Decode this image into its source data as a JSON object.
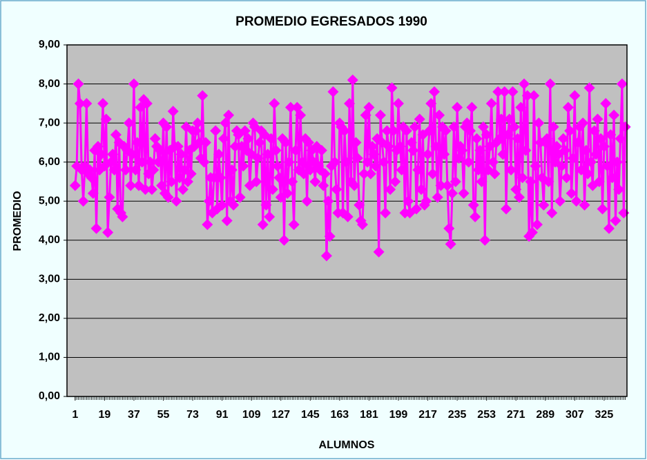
{
  "chart_data": {
    "type": "line",
    "title": "PROMEDIO EGRESADOS 1990",
    "x_label": "ALUMNOS",
    "y_label": "PROMEDIO",
    "x": [
      1,
      2,
      3,
      4,
      5,
      6,
      7,
      8,
      9,
      10,
      11,
      12,
      13,
      14,
      15,
      16,
      17,
      18,
      19,
      20,
      21,
      22,
      23,
      24,
      25,
      26,
      27,
      28,
      29,
      30,
      31,
      32,
      33,
      34,
      35,
      36,
      37,
      38,
      39,
      40,
      41,
      42,
      43,
      44,
      45,
      46,
      47,
      48,
      49,
      50,
      51,
      52,
      53,
      54,
      55,
      56,
      57,
      58,
      59,
      60,
      61,
      62,
      63,
      64,
      65,
      66,
      67,
      68,
      69,
      70,
      71,
      72,
      73,
      74,
      75,
      76,
      77,
      78,
      79,
      80,
      81,
      82,
      83,
      84,
      85,
      86,
      87,
      88,
      89,
      90,
      91,
      92,
      93,
      94,
      95,
      96,
      97,
      98,
      99,
      100,
      101,
      102,
      103,
      104,
      105,
      106,
      107,
      108,
      109,
      110,
      111,
      112,
      113,
      114,
      115,
      116,
      117,
      118,
      119,
      120,
      121,
      122,
      123,
      124,
      125,
      126,
      127,
      128,
      129,
      130,
      131,
      132,
      133,
      134,
      135,
      136,
      137,
      138,
      139,
      140,
      141,
      142,
      143,
      144,
      145,
      146,
      147,
      148,
      149,
      150,
      151,
      152,
      153,
      154,
      155,
      156,
      157,
      158,
      159,
      160,
      161,
      162,
      163,
      164,
      165,
      166,
      167,
      168,
      169,
      170,
      171,
      172,
      173,
      174,
      175,
      176,
      177,
      178,
      179,
      180,
      181,
      182,
      183,
      184,
      185,
      186,
      187,
      188,
      189,
      190,
      191,
      192,
      193,
      194,
      195,
      196,
      197,
      198,
      199,
      200,
      201,
      202,
      203,
      204,
      205,
      206,
      207,
      208,
      209,
      210,
      211,
      212,
      213,
      214,
      215,
      216,
      217,
      218,
      219,
      220,
      221,
      222,
      223,
      224,
      225,
      226,
      227,
      228,
      229,
      230,
      231,
      232,
      233,
      234,
      235,
      236,
      237,
      238,
      239,
      240,
      241,
      242,
      243,
      244,
      245,
      246,
      247,
      248,
      249,
      250,
      251,
      252,
      253,
      254,
      255,
      256,
      257,
      258,
      259,
      260,
      261,
      262,
      263,
      264,
      265,
      266,
      267,
      268,
      269,
      270,
      271,
      272,
      273,
      274,
      275,
      276,
      277,
      278,
      279,
      280,
      281,
      282,
      283,
      284,
      285,
      286,
      287,
      288,
      289,
      290,
      291,
      292,
      293,
      294,
      295,
      296,
      297,
      298,
      299,
      300,
      301,
      302,
      303,
      304,
      305,
      306,
      307,
      308,
      309,
      310,
      311,
      312,
      313,
      314,
      315,
      316,
      317,
      318,
      319,
      320,
      321,
      322,
      323,
      324,
      325,
      326,
      327,
      328,
      329,
      330,
      331,
      332,
      333,
      334,
      335,
      336,
      337,
      338
    ],
    "series": [
      {
        "name": "PROMEDIO",
        "color": "#ff00ff",
        "values": [
          5.4,
          5.9,
          8.0,
          7.5,
          5.8,
          5.0,
          5.9,
          7.5,
          5.7,
          5.8,
          5.6,
          5.2,
          6.3,
          4.3,
          6.4,
          5.8,
          6.2,
          7.5,
          5.9,
          7.1,
          4.2,
          5.1,
          6.0,
          6.2,
          5.8,
          6.7,
          4.8,
          6.5,
          4.7,
          4.6,
          6.4,
          5.8,
          6.3,
          7.0,
          5.4,
          6.2,
          8.0,
          5.8,
          6.5,
          5.4,
          7.4,
          6.0,
          7.6,
          5.3,
          7.5,
          5.7,
          6.0,
          5.3,
          5.8,
          6.6,
          6.4,
          6.0,
          6.3,
          5.4,
          7.0,
          5.2,
          6.9,
          5.1,
          6.3,
          5.5,
          7.3,
          6.4,
          5.0,
          6.4,
          5.6,
          6.2,
          5.3,
          5.8,
          6.9,
          5.5,
          6.3,
          5.7,
          6.8,
          6.4,
          6.8,
          7.0,
          6.5,
          6.1,
          7.7,
          6.0,
          6.5,
          4.4,
          5.0,
          5.6,
          4.7,
          5.6,
          6.8,
          4.8,
          6.2,
          5.6,
          4.9,
          6.6,
          7.0,
          4.5,
          7.2,
          5.0,
          5.8,
          4.9,
          6.4,
          6.8,
          6.7,
          5.1,
          6.4,
          5.9,
          6.8,
          6.3,
          6.6,
          5.4,
          6.2,
          7.0,
          6.9,
          5.5,
          6.1,
          6.5,
          6.8,
          4.4,
          6.7,
          4.9,
          6.2,
          4.6,
          6.6,
          5.3,
          7.5,
          6.3,
          5.9,
          5.6,
          5.1,
          6.6,
          4.0,
          6.5,
          5.2,
          6.0,
          7.4,
          5.5,
          4.4,
          6.3,
          7.4,
          5.8,
          7.2,
          6.0,
          5.7,
          6.6,
          5.0,
          6.5,
          5.8,
          6.3,
          6.0,
          5.5,
          6.4,
          5.9,
          5.8,
          6.3,
          5.4,
          5.7,
          3.6,
          5.0,
          4.1,
          5.9,
          7.8,
          6.0,
          5.3,
          4.7,
          7.0,
          6.9,
          4.7,
          6.8,
          6.0,
          4.6,
          7.5,
          5.5,
          8.1,
          5.4,
          6.5,
          6.1,
          4.9,
          4.5,
          4.4,
          5.7,
          7.2,
          6.0,
          7.4,
          5.7,
          6.4,
          6.2,
          5.9,
          6.6,
          3.7,
          7.2,
          6.5,
          6.0,
          4.7,
          6.8,
          6.4,
          5.3,
          7.9,
          6.8,
          5.5,
          6.3,
          7.5,
          6.4,
          5.8,
          6.9,
          4.7,
          6.8,
          5.0,
          4.7,
          6.5,
          6.3,
          6.9,
          4.8,
          5.8,
          7.1,
          5.3,
          6.7,
          4.9,
          5.0,
          6.2,
          6.8,
          7.5,
          5.7,
          7.8,
          6.4,
          5.1,
          7.2,
          5.4,
          6.9,
          6.2,
          6.8,
          5.4,
          4.3,
          3.9,
          5.2,
          6.9,
          5.5,
          7.4,
          6.1,
          6.4,
          6.3,
          5.2,
          6.9,
          7.0,
          6.0,
          6.8,
          7.4,
          4.9,
          4.6,
          6.6,
          5.8,
          6.3,
          5.5,
          6.9,
          4.0,
          6.7,
          5.8,
          6.4,
          7.5,
          6.0,
          5.7,
          6.5,
          7.8,
          6.6,
          7.1,
          6.2,
          7.8,
          4.8,
          6.7,
          7.1,
          5.8,
          7.8,
          6.9,
          5.3,
          6.6,
          5.1,
          7.4,
          5.6,
          8.0,
          6.3,
          7.7,
          4.1,
          5.5,
          4.2,
          7.7,
          5.9,
          4.4,
          7.0,
          6.5,
          5.6,
          4.9,
          6.5,
          6.6,
          5.5,
          8.0,
          4.7,
          6.9,
          6.0,
          6.4,
          6.2,
          5.0,
          5.9,
          6.6,
          6.3,
          5.6,
          7.4,
          6.8,
          5.2,
          6.1,
          7.7,
          5.0,
          6.5,
          6.9,
          5.8,
          7.0,
          4.9,
          6.3,
          5.7,
          7.9,
          6.0,
          5.4,
          6.8,
          6.2,
          7.1,
          5.5,
          6.6,
          4.8,
          6.4,
          7.5,
          5.9,
          4.3,
          6.7,
          5.6,
          7.2,
          4.5,
          6.0,
          5.3,
          6.6,
          8.0,
          4.7,
          6.9
        ]
      }
    ],
    "xlim": [
      -4,
      339
    ],
    "xticks": [
      1,
      19,
      37,
      55,
      73,
      91,
      109,
      127,
      145,
      163,
      181,
      199,
      217,
      235,
      253,
      271,
      289,
      307,
      325
    ],
    "ylim": [
      0,
      9
    ],
    "yticks": [
      {
        "value": 0,
        "label": "0,00"
      },
      {
        "value": 1,
        "label": "1,00"
      },
      {
        "value": 2,
        "label": "2,00"
      },
      {
        "value": 3,
        "label": "3,00"
      },
      {
        "value": 4,
        "label": "4,00"
      },
      {
        "value": 5,
        "label": "5,00"
      },
      {
        "value": 6,
        "label": "6,00"
      },
      {
        "value": 7,
        "label": "7,00"
      },
      {
        "value": 8,
        "label": "8,00"
      },
      {
        "value": 9,
        "label": "9,00"
      }
    ],
    "grid": true,
    "legend": false
  }
}
